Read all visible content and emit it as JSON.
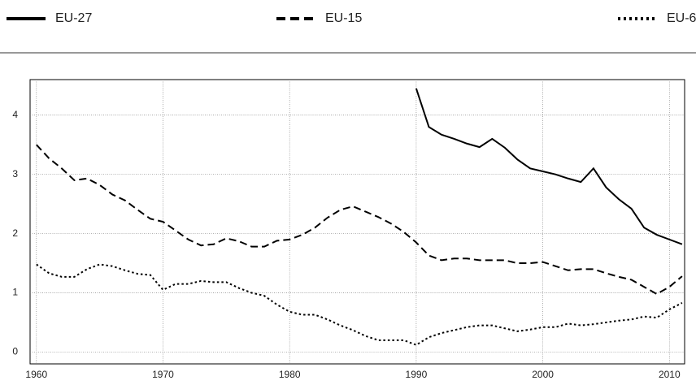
{
  "chart_data": {
    "type": "line",
    "x": [
      1960,
      1961,
      1962,
      1963,
      1964,
      1965,
      1966,
      1967,
      1968,
      1969,
      1970,
      1971,
      1972,
      1973,
      1974,
      1975,
      1976,
      1977,
      1978,
      1979,
      1980,
      1981,
      1982,
      1983,
      1984,
      1985,
      1986,
      1987,
      1988,
      1989,
      1990,
      1991,
      1992,
      1993,
      1994,
      1995,
      1996,
      1997,
      1998,
      1999,
      2000,
      2001,
      2002,
      2003,
      2004,
      2005,
      2006,
      2007,
      2008,
      2009,
      2010,
      2011
    ],
    "series": [
      {
        "name": "EU-27",
        "color": "#000000",
        "dash": "solid",
        "values": [
          null,
          null,
          null,
          null,
          null,
          null,
          null,
          null,
          null,
          null,
          null,
          null,
          null,
          null,
          null,
          null,
          null,
          null,
          null,
          null,
          null,
          null,
          null,
          null,
          null,
          null,
          null,
          null,
          null,
          null,
          4.45,
          3.8,
          3.67,
          3.6,
          3.52,
          3.46,
          3.6,
          3.45,
          3.25,
          3.1,
          3.05,
          3.0,
          2.93,
          2.87,
          3.1,
          2.78,
          2.58,
          2.42,
          2.1,
          1.98,
          1.9,
          1.82
        ]
      },
      {
        "name": "EU-15",
        "color": "#000000",
        "dash": "dashed",
        "values": [
          3.5,
          3.27,
          3.1,
          2.9,
          2.93,
          2.82,
          2.66,
          2.56,
          2.4,
          2.25,
          2.2,
          2.05,
          1.9,
          1.8,
          1.82,
          1.92,
          1.87,
          1.78,
          1.78,
          1.88,
          1.9,
          1.98,
          2.1,
          2.27,
          2.4,
          2.46,
          2.37,
          2.28,
          2.17,
          2.03,
          1.85,
          1.63,
          1.55,
          1.58,
          1.58,
          1.55,
          1.55,
          1.55,
          1.5,
          1.5,
          1.52,
          1.45,
          1.38,
          1.4,
          1.4,
          1.33,
          1.27,
          1.22,
          1.1,
          0.98,
          1.1,
          1.28
        ]
      },
      {
        "name": "EU-6",
        "color": "#000000",
        "dash": "dotted",
        "values": [
          1.48,
          1.33,
          1.27,
          1.27,
          1.4,
          1.48,
          1.45,
          1.38,
          1.32,
          1.3,
          1.05,
          1.15,
          1.15,
          1.2,
          1.18,
          1.18,
          1.08,
          1.0,
          0.95,
          0.8,
          0.68,
          0.63,
          0.63,
          0.55,
          0.45,
          0.37,
          0.27,
          0.2,
          0.2,
          0.2,
          0.12,
          0.25,
          0.32,
          0.37,
          0.42,
          0.45,
          0.45,
          0.4,
          0.35,
          0.38,
          0.42,
          0.42,
          0.48,
          0.45,
          0.47,
          0.5,
          0.53,
          0.55,
          0.6,
          0.58,
          0.72,
          0.83
        ]
      }
    ],
    "xlim": [
      1959.5,
      2011.2
    ],
    "xticks": [
      1960,
      1970,
      1980,
      1990,
      2000,
      2010
    ],
    "ylim": [
      -0.2,
      4.6
    ],
    "yticks": [
      0,
      1,
      2,
      3,
      4
    ],
    "grid": true
  }
}
